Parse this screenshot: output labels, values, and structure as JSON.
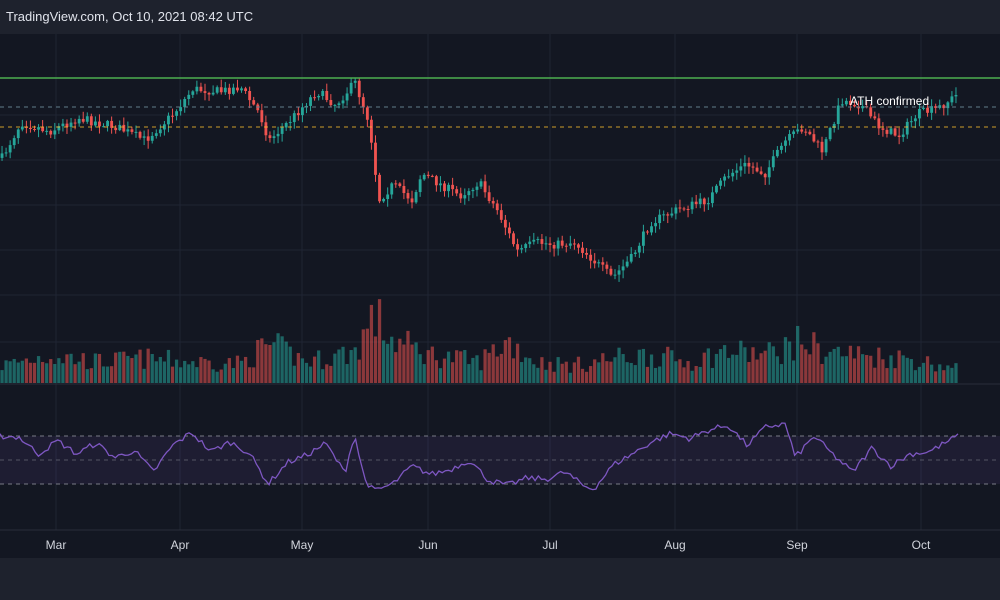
{
  "header": {
    "title": "TradingView.com, Oct 10, 2021 08:42 UTC"
  },
  "colors": {
    "background": "#131722",
    "up": "#26a69a",
    "down": "#ef5350",
    "rsi_line": "#7e57c2",
    "resistance": "#4caf50",
    "dashed": "#fbc02d"
  },
  "chart_data": [
    {
      "type": "candlestick",
      "title": "",
      "annotation": "ATH confirmed",
      "x_range": [
        "2021-02-15",
        "2021-10-10"
      ],
      "x_ticks": [
        "Mar",
        "Apr",
        "May",
        "Jun",
        "Jul",
        "Aug",
        "Sep",
        "Oct"
      ],
      "y_axis_visible": false,
      "horizontal_lines": [
        {
          "name": "resistance",
          "color": "#4caf50",
          "style": "solid"
        },
        {
          "name": "upper-dashed",
          "color": "#607d8b",
          "style": "dashed"
        },
        {
          "name": "lower-dashed",
          "color": "#fbc02d",
          "style": "dashed"
        }
      ],
      "trend_path": [
        [
          0,
          0.36
        ],
        [
          0.02,
          0.2
        ],
        [
          0.05,
          0.24
        ],
        [
          0.08,
          0.18
        ],
        [
          0.12,
          0.22
        ],
        [
          0.15,
          0.28
        ],
        [
          0.18,
          0.16
        ],
        [
          0.2,
          0.05
        ],
        [
          0.23,
          0.06
        ],
        [
          0.25,
          0.04
        ],
        [
          0.27,
          0.16
        ],
        [
          0.28,
          0.28
        ],
        [
          0.3,
          0.2
        ],
        [
          0.33,
          0.06
        ],
        [
          0.35,
          0.12
        ],
        [
          0.37,
          0.02
        ],
        [
          0.385,
          0.2
        ],
        [
          0.395,
          0.55
        ],
        [
          0.41,
          0.48
        ],
        [
          0.43,
          0.55
        ],
        [
          0.44,
          0.43
        ],
        [
          0.46,
          0.48
        ],
        [
          0.48,
          0.53
        ],
        [
          0.5,
          0.47
        ],
        [
          0.52,
          0.6
        ],
        [
          0.54,
          0.78
        ],
        [
          0.56,
          0.74
        ],
        [
          0.58,
          0.75
        ],
        [
          0.6,
          0.74
        ],
        [
          0.62,
          0.82
        ],
        [
          0.64,
          0.9
        ],
        [
          0.66,
          0.81
        ],
        [
          0.68,
          0.65
        ],
        [
          0.71,
          0.59
        ],
        [
          0.74,
          0.55
        ],
        [
          0.76,
          0.44
        ],
        [
          0.78,
          0.39
        ],
        [
          0.8,
          0.43
        ],
        [
          0.82,
          0.29
        ],
        [
          0.84,
          0.22
        ],
        [
          0.86,
          0.33
        ],
        [
          0.88,
          0.1
        ],
        [
          0.9,
          0.12
        ],
        [
          0.92,
          0.22
        ],
        [
          0.94,
          0.26
        ],
        [
          0.96,
          0.16
        ],
        [
          0.98,
          0.14
        ],
        [
          1.0,
          0.08
        ]
      ],
      "volume_path": [
        [
          0,
          0.25
        ],
        [
          0.05,
          0.4
        ],
        [
          0.1,
          0.3
        ],
        [
          0.15,
          0.35
        ],
        [
          0.2,
          0.3
        ],
        [
          0.25,
          0.28
        ],
        [
          0.28,
          0.55
        ],
        [
          0.32,
          0.3
        ],
        [
          0.37,
          0.45
        ],
        [
          0.39,
          0.95
        ],
        [
          0.41,
          0.6
        ],
        [
          0.45,
          0.4
        ],
        [
          0.5,
          0.3
        ],
        [
          0.53,
          0.6
        ],
        [
          0.56,
          0.3
        ],
        [
          0.6,
          0.25
        ],
        [
          0.64,
          0.35
        ],
        [
          0.68,
          0.4
        ],
        [
          0.72,
          0.3
        ],
        [
          0.76,
          0.45
        ],
        [
          0.8,
          0.4
        ],
        [
          0.84,
          0.6
        ],
        [
          0.86,
          0.45
        ],
        [
          0.9,
          0.4
        ],
        [
          0.95,
          0.35
        ],
        [
          1.0,
          0.2
        ]
      ]
    },
    {
      "type": "line",
      "name": "RSI",
      "upper_band": 70,
      "mid_band": 50,
      "lower_band": 30,
      "path": [
        [
          0,
          70
        ],
        [
          0.02,
          69
        ],
        [
          0.04,
          55
        ],
        [
          0.06,
          66
        ],
        [
          0.08,
          55
        ],
        [
          0.1,
          64
        ],
        [
          0.12,
          52
        ],
        [
          0.14,
          58
        ],
        [
          0.16,
          40
        ],
        [
          0.18,
          62
        ],
        [
          0.2,
          73
        ],
        [
          0.22,
          57
        ],
        [
          0.24,
          65
        ],
        [
          0.26,
          56
        ],
        [
          0.28,
          30
        ],
        [
          0.3,
          48
        ],
        [
          0.32,
          54
        ],
        [
          0.34,
          64
        ],
        [
          0.36,
          39
        ],
        [
          0.37,
          72
        ],
        [
          0.38,
          35
        ],
        [
          0.39,
          24
        ],
        [
          0.41,
          30
        ],
        [
          0.43,
          45
        ],
        [
          0.45,
          38
        ],
        [
          0.47,
          42
        ],
        [
          0.49,
          50
        ],
        [
          0.51,
          33
        ],
        [
          0.53,
          29
        ],
        [
          0.55,
          35
        ],
        [
          0.57,
          34
        ],
        [
          0.59,
          40
        ],
        [
          0.61,
          28
        ],
        [
          0.62,
          26
        ],
        [
          0.64,
          46
        ],
        [
          0.66,
          55
        ],
        [
          0.68,
          65
        ],
        [
          0.7,
          72
        ],
        [
          0.72,
          68
        ],
        [
          0.74,
          75
        ],
        [
          0.76,
          79
        ],
        [
          0.78,
          62
        ],
        [
          0.8,
          78
        ],
        [
          0.82,
          80
        ],
        [
          0.83,
          52
        ],
        [
          0.85,
          70
        ],
        [
          0.87,
          54
        ],
        [
          0.89,
          40
        ],
        [
          0.91,
          60
        ],
        [
          0.93,
          45
        ],
        [
          0.95,
          55
        ],
        [
          0.97,
          57
        ],
        [
          1.0,
          70
        ]
      ]
    }
  ]
}
